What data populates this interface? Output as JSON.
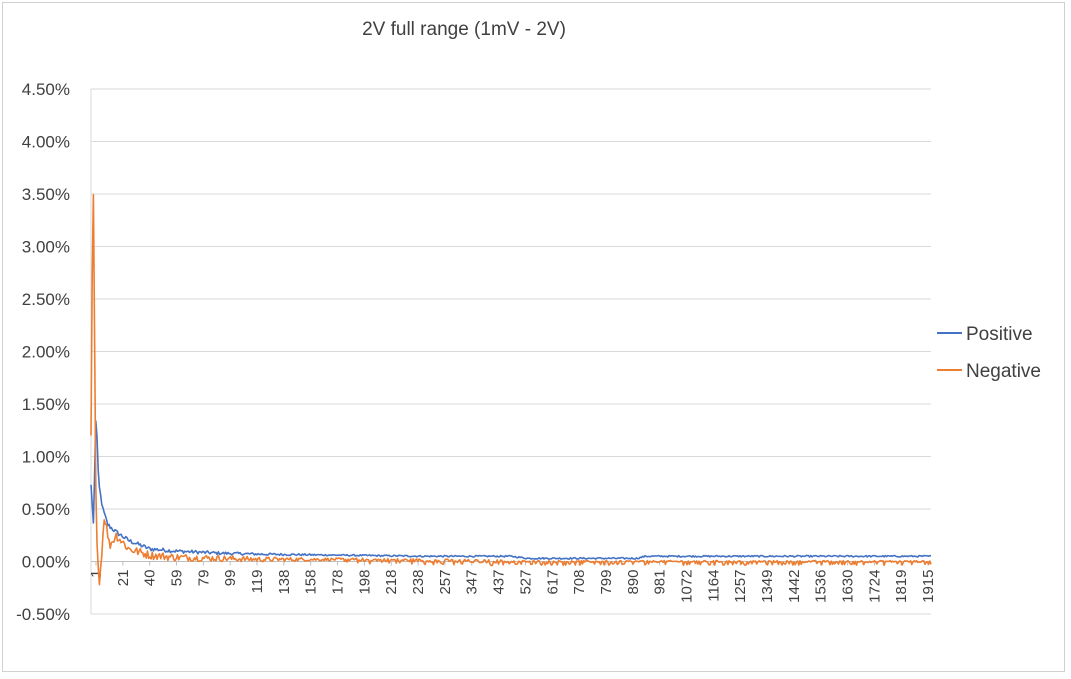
{
  "chart_data": {
    "type": "line",
    "title": "2V full range (1mV - 2V)",
    "xlabel": "",
    "ylabel": "",
    "ylim": [
      -0.005,
      0.045
    ],
    "y_ticks": [
      "4.50%",
      "4.00%",
      "3.50%",
      "3.00%",
      "2.50%",
      "2.00%",
      "1.50%",
      "1.00%",
      "0.50%",
      "0.00%",
      "-0.50%"
    ],
    "y_tick_values": [
      0.045,
      0.04,
      0.035,
      0.03,
      0.025,
      0.02,
      0.015,
      0.01,
      0.005,
      0,
      -0.005
    ],
    "x_ticks": [
      "1",
      "21",
      "40",
      "59",
      "79",
      "99",
      "119",
      "138",
      "158",
      "178",
      "198",
      "218",
      "238",
      "257",
      "347",
      "437",
      "527",
      "617",
      "708",
      "799",
      "890",
      "981",
      "1072",
      "1164",
      "1257",
      "1349",
      "1442",
      "1536",
      "1630",
      "1724",
      "1819",
      "1915"
    ],
    "grid": true,
    "legend_position": "right",
    "series": [
      {
        "name": "Positive",
        "color": "#4472C4",
        "keypoints": [
          [
            0,
            0.0073
          ],
          [
            0.003,
            0.0035
          ],
          [
            0.006,
            0.0145
          ],
          [
            0.009,
            0.0075
          ],
          [
            0.014,
            0.005
          ],
          [
            0.02,
            0.0035
          ],
          [
            0.03,
            0.0028
          ],
          [
            0.045,
            0.002
          ],
          [
            0.07,
            0.0012
          ],
          [
            0.1,
            0.001
          ],
          [
            0.15,
            0.0008
          ],
          [
            0.2,
            0.0007
          ],
          [
            0.3,
            0.0006
          ],
          [
            0.4,
            0.0005
          ],
          [
            0.5,
            0.0005
          ],
          [
            0.52,
            0.0003
          ],
          [
            0.65,
            0.0003
          ],
          [
            0.66,
            0.0005
          ],
          [
            1.0,
            0.0005
          ]
        ],
        "noise": 0.00015
      },
      {
        "name": "Negative",
        "color": "#ED7D31",
        "keypoints": [
          [
            0,
            0.012
          ],
          [
            0.0025,
            0.0385
          ],
          [
            0.006,
            0.004
          ],
          [
            0.01,
            -0.0022
          ],
          [
            0.016,
            0.0045
          ],
          [
            0.022,
            0.0015
          ],
          [
            0.03,
            0.0025
          ],
          [
            0.045,
            0.0012
          ],
          [
            0.07,
            0.0006
          ],
          [
            0.1,
            0.0004
          ],
          [
            0.2,
            0.0002
          ],
          [
            0.3,
            0.0002
          ],
          [
            0.5,
            0.0
          ],
          [
            1.0,
            0.0
          ]
        ],
        "noise": 0.0003
      }
    ]
  }
}
